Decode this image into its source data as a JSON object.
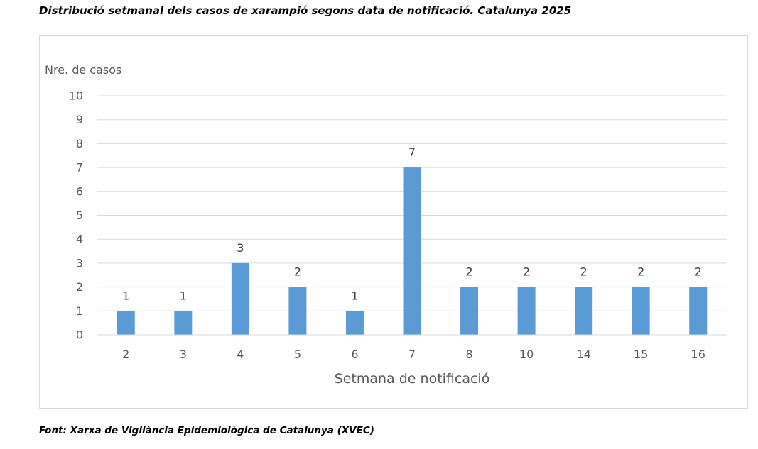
{
  "figure": {
    "title": "Distribució setmanal dels casos de xarampió segons data de notificació. Catalunya 2025",
    "source": "Font: Xarxa de Vigilància Epidemiològica de Catalunya (XVEC)"
  },
  "chart_data": {
    "type": "bar",
    "categories": [
      "2",
      "3",
      "4",
      "5",
      "6",
      "7",
      "8",
      "10",
      "14",
      "15",
      "16"
    ],
    "values": [
      1,
      1,
      3,
      2,
      1,
      7,
      2,
      2,
      2,
      2,
      2
    ],
    "xlabel": "Setmana de notificació",
    "ylabel": "Nre. de casos",
    "ylim": [
      0,
      10
    ],
    "yticks": [
      0,
      1,
      2,
      3,
      4,
      5,
      6,
      7,
      8,
      9,
      10
    ],
    "grid": true,
    "data_labels": true,
    "bar_color": "#5b9bd5",
    "grid_color": "#d9d9d9",
    "text_color": "#595959"
  }
}
